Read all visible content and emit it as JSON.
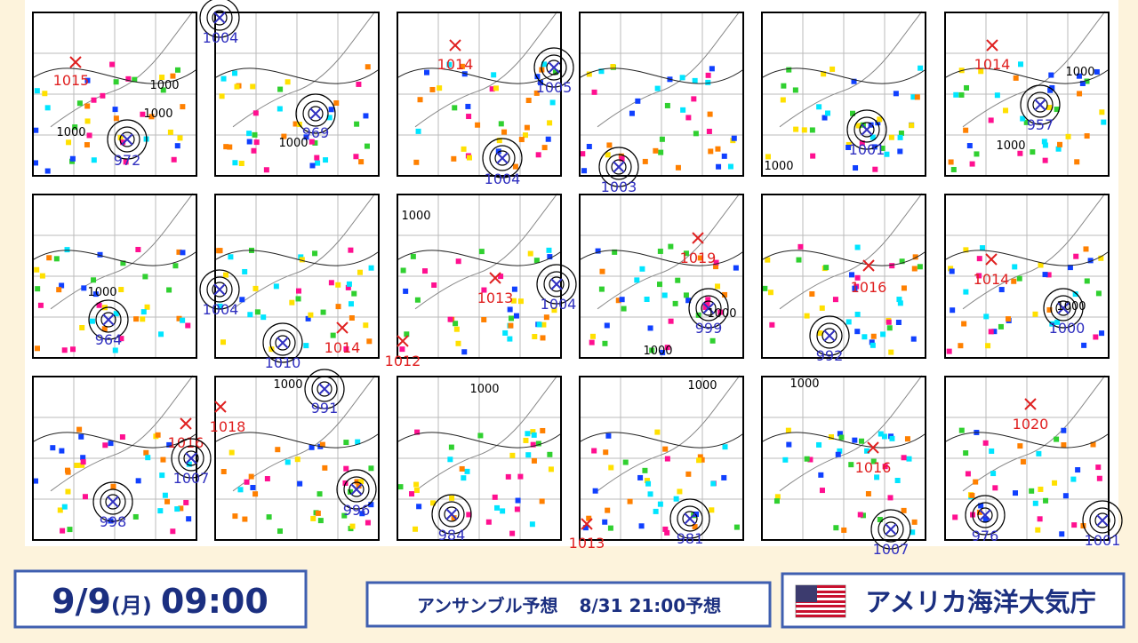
{
  "panels": [
    {
      "markers": [
        {
          "kind": "high",
          "label": "1015"
        },
        {
          "kind": "low",
          "label": "972"
        }
      ],
      "contours": [
        "1000",
        "1000",
        "1000"
      ]
    },
    {
      "markers": [
        {
          "kind": "low",
          "label": "1004"
        },
        {
          "kind": "low",
          "label": "969"
        }
      ],
      "contours": [
        "1000"
      ]
    },
    {
      "markers": [
        {
          "kind": "high",
          "label": "1014"
        },
        {
          "kind": "low",
          "label": "1005"
        },
        {
          "kind": "low",
          "label": "1004"
        }
      ],
      "contours": []
    },
    {
      "markers": [
        {
          "kind": "low",
          "label": "1003"
        }
      ],
      "contours": []
    },
    {
      "markers": [
        {
          "kind": "low",
          "label": "1001"
        }
      ],
      "contours": [
        "1000"
      ]
    },
    {
      "markers": [
        {
          "kind": "high",
          "label": "1014"
        },
        {
          "kind": "low",
          "label": "957"
        }
      ],
      "contours": [
        "1000",
        "1000"
      ]
    },
    {
      "markers": [
        {
          "kind": "low",
          "label": "964"
        }
      ],
      "contours": [
        "1000"
      ]
    },
    {
      "markers": [
        {
          "kind": "low",
          "label": "1004"
        },
        {
          "kind": "low",
          "label": "1010"
        },
        {
          "kind": "high",
          "label": "1014"
        }
      ],
      "contours": []
    },
    {
      "markers": [
        {
          "kind": "high",
          "label": "1013"
        },
        {
          "kind": "low",
          "label": "1004"
        },
        {
          "kind": "high",
          "label": "1012"
        }
      ],
      "contours": [
        "1000"
      ]
    },
    {
      "markers": [
        {
          "kind": "high",
          "label": "1019"
        },
        {
          "kind": "low",
          "label": "999"
        }
      ],
      "contours": [
        "1000",
        "1000"
      ]
    },
    {
      "markers": [
        {
          "kind": "high",
          "label": "1016"
        },
        {
          "kind": "low",
          "label": "992"
        }
      ],
      "contours": []
    },
    {
      "markers": [
        {
          "kind": "high",
          "label": "1014"
        },
        {
          "kind": "low",
          "label": "1000"
        }
      ],
      "contours": [
        "1000"
      ]
    },
    {
      "markers": [
        {
          "kind": "high",
          "label": "1016"
        },
        {
          "kind": "low",
          "label": "1007"
        },
        {
          "kind": "low",
          "label": "998"
        }
      ],
      "contours": []
    },
    {
      "markers": [
        {
          "kind": "high",
          "label": "1018"
        },
        {
          "kind": "low",
          "label": "991"
        },
        {
          "kind": "low",
          "label": "996"
        }
      ],
      "contours": [
        "1000"
      ]
    },
    {
      "markers": [
        {
          "kind": "low",
          "label": "984"
        }
      ],
      "contours": [
        "1000"
      ]
    },
    {
      "markers": [
        {
          "kind": "high",
          "label": "1013"
        },
        {
          "kind": "low",
          "label": "981"
        }
      ],
      "contours": [
        "1000"
      ]
    },
    {
      "markers": [
        {
          "kind": "high",
          "label": "1016"
        },
        {
          "kind": "low",
          "label": "1007"
        }
      ],
      "contours": [
        "1000"
      ]
    },
    {
      "markers": [
        {
          "kind": "high",
          "label": "1020"
        },
        {
          "kind": "low",
          "label": "976"
        },
        {
          "kind": "low",
          "label": "1001"
        }
      ],
      "contours": []
    }
  ],
  "footer": {
    "date": "9/9",
    "weekday": "(月)",
    "time": "09:00",
    "ensemble": "アンサンブル予想",
    "issued": "8/31 21:00予想",
    "agency": "アメリカ海洋大気庁"
  }
}
